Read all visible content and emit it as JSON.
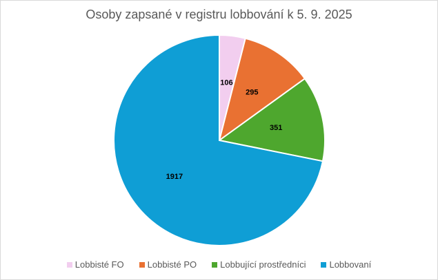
{
  "chart_data": {
    "type": "pie",
    "title": "Osoby zapsané v registru lobbování k 5. 9. 2025",
    "categories": [
      "Lobbisté FO",
      "Lobbisté PO",
      "Lobbující prostředníci",
      "Lobbovaní"
    ],
    "values": [
      106,
      295,
      351,
      1917
    ],
    "colors": [
      "#f2ceef",
      "#e97132",
      "#4ea72e",
      "#0f9ed5"
    ],
    "start_angle_deg": 0,
    "direction": "clockwise",
    "legend_position": "bottom",
    "data_labels": true
  }
}
